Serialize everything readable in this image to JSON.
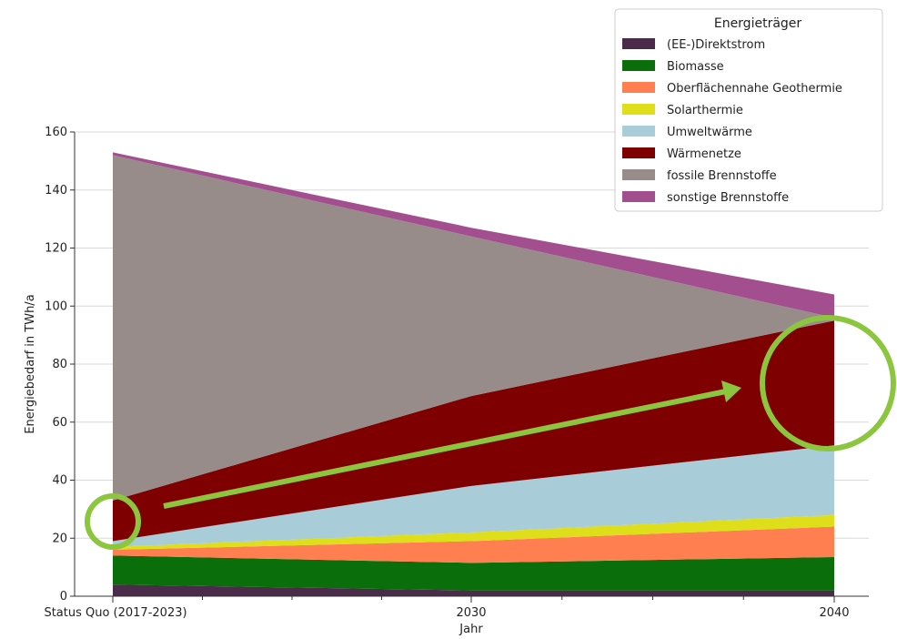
{
  "chart_data": {
    "type": "area",
    "stacked": true,
    "categories": [
      "Status Quo (2017-2023)",
      "2030",
      "2040"
    ],
    "xlabel": "Jahr",
    "ylabel": "Energiebedarf in TWh/a",
    "ylim": [
      0,
      160
    ],
    "yticks": [
      0,
      20,
      40,
      60,
      80,
      100,
      120,
      140,
      160
    ],
    "grid": "horizontal",
    "legend": {
      "title": "Energieträger",
      "placement": "top-right"
    },
    "series": [
      {
        "name": "(EE-)Direktstrom",
        "color": "#4a2c4a",
        "values": [
          4,
          2,
          2
        ]
      },
      {
        "name": "Biomasse",
        "color": "#0a6e0a",
        "values": [
          10,
          9.5,
          11.5
        ]
      },
      {
        "name": "Oberflächennahe Geothermie",
        "color": "#ff7f50",
        "values": [
          2,
          7.5,
          10.5
        ]
      },
      {
        "name": "Solarthermie",
        "color": "#dede1a",
        "values": [
          1,
          3,
          4
        ]
      },
      {
        "name": "Umweltwärme",
        "color": "#a8ccd8",
        "values": [
          2,
          16,
          24
        ]
      },
      {
        "name": "Wärmenetze",
        "color": "#7f0000",
        "values": [
          14,
          31,
          43
        ]
      },
      {
        "name": "fossile Brennstoffe",
        "color": "#988c8a",
        "values": [
          119,
          55,
          1
        ]
      },
      {
        "name": "sonstige Brennstoffe",
        "color": "#a34f8f",
        "values": [
          1,
          3,
          8
        ]
      }
    ],
    "annotations": [
      {
        "type": "circle",
        "color": "#8cc63f",
        "at": "Status Quo (2017-2023)",
        "value": 19
      },
      {
        "type": "circle",
        "color": "#8cc63f",
        "at": "2040",
        "value": 79
      },
      {
        "type": "arrow",
        "color": "#8cc63f",
        "from": "Status Quo (2017-2023)",
        "to": "2040"
      }
    ]
  }
}
